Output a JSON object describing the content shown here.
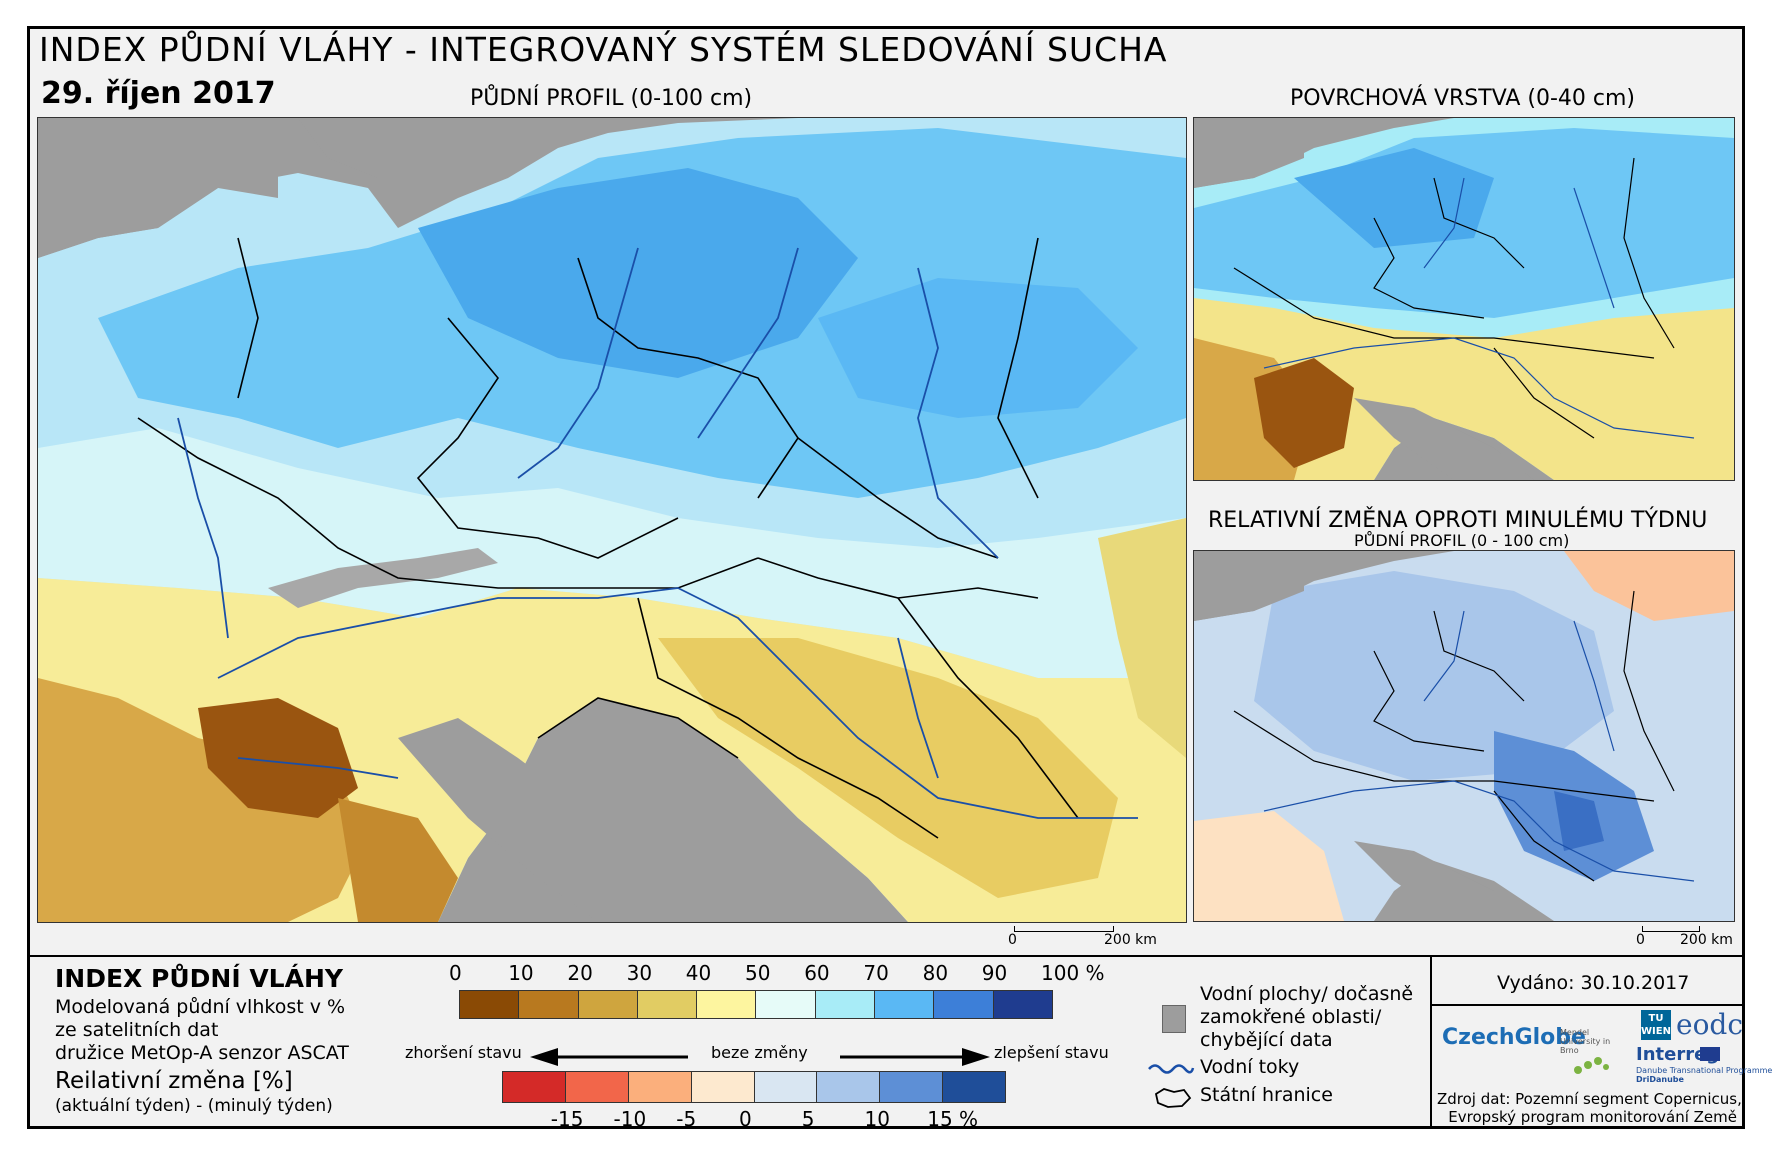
{
  "header": {
    "title": "INDEX PŮDNÍ VLÁHY - INTEGROVANÝ SYSTÉM SLEDOVÁNÍ SUCHA",
    "date": "29. říjen 2017"
  },
  "maps": {
    "main_title": "PŮDNÍ PROFIL (0-100 cm)",
    "surface_title": "POVRCHOVÁ VRSTVA (0-40 cm)",
    "change_title": "RELATIVNÍ ZMĚNA OPROTI MINULÉMU TÝDNU",
    "change_subtitle": "PŮDNÍ PROFIL (0 - 100 cm)",
    "scale_main": {
      "zero": "0",
      "end": "200 km"
    },
    "scale_small": {
      "zero": "0",
      "end": "200 km"
    }
  },
  "legend": {
    "title": "INDEX PŮDNÍ VLÁHY",
    "desc1": "Modelovaná půdní vlhkost v %",
    "desc2": "ze satelitních dat",
    "desc3": "družice MetOp-A senzor ASCAT",
    "change_title": "Reilativní změna [%]",
    "change_desc": "(aktuální týden) - (minulý týden)",
    "index_ticks": [
      "0",
      "10",
      "20",
      "30",
      "40",
      "50",
      "60",
      "70",
      "80",
      "90",
      "100 %"
    ],
    "index_colors": [
      "#8a4a05",
      "#b8791f",
      "#cfa53e",
      "#e1cc63",
      "#fdf59f",
      "#e6fbf8",
      "#a8ecf7",
      "#5ab8f4",
      "#3d7fd8",
      "#1f3c8f"
    ],
    "arrow_worse": "zhoršení stavu",
    "arrow_none": "beze změny",
    "arrow_better": "zlepšení stavu",
    "change_ticks": [
      "-15",
      "-10",
      "-5",
      "0",
      "5",
      "10",
      "15 %"
    ],
    "change_colors": [
      "#d42a28",
      "#f2664a",
      "#fbaf7c",
      "#fde9cf",
      "#d9e6f2",
      "#a9c6ea",
      "#5d8fd6",
      "#1f4e99"
    ],
    "water": "Vodní plochy/ dočasně",
    "water2": "zamokřené oblasti/",
    "water3": "chybějící data",
    "rivers": "Vodní toky",
    "borders": "Státní hranice",
    "issued": "Vydáno: 30.10.2017",
    "logo_czechglobe": "CzechGlobe",
    "logo_mendel": "Mendel University in Brno",
    "logo_tu": "TU WIEN",
    "logo_eodc": "eodc",
    "logo_interreg": "Interreg",
    "logo_interreg_sub": "Danube Transnational Programme",
    "logo_dridanube": "DriDanube",
    "source1": "Zdroj dat: Pozemní segment Copernicus,",
    "source2": "Evropský program monitorování Země"
  },
  "colors": {
    "frame": "#000000",
    "background": "#f2f2f2",
    "sea": "#9d9d9d",
    "river": "#1a4fa8"
  }
}
